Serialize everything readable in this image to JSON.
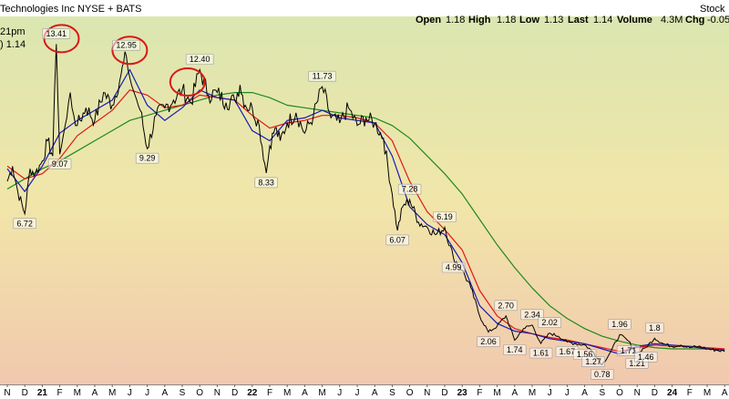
{
  "header": {
    "title": "Technologies Inc  NYSE + BATS",
    "time": "21pm",
    "last_label": ") 1.14",
    "open_label": "Open",
    "open_value": "1.18",
    "high_label": "High",
    "high_value": "1.18",
    "low_label": "Low",
    "low_value": "1.13",
    "last2_label": "Last",
    "last2_value": "1.14",
    "volume_label": "Volume",
    "volume_value": "4.3M",
    "chg_label": "Chg",
    "chg_value": "-0.05",
    "watermark": "Stock"
  },
  "colors": {
    "price": "#000000",
    "ma_short": "#1a1ab8",
    "ma_mid": "#e01818",
    "ma_long": "#1d8a1d",
    "circle": "#d81818",
    "bg_top": "#dbe6b0",
    "bg_mid": "#f1e6a9",
    "bg_bottom": "#f1c8ae"
  },
  "chart_data": {
    "type": "line",
    "ylim": [
      0,
      14.5
    ],
    "x_ticks": [
      "N",
      "D",
      "21",
      "F",
      "M",
      "A",
      "M",
      "J",
      "J",
      "A",
      "S",
      "O",
      "N",
      "D",
      "22",
      "F",
      "M",
      "A",
      "M",
      "J",
      "J",
      "A",
      "S",
      "O",
      "N",
      "D",
      "23",
      "F",
      "M",
      "A",
      "M",
      "J",
      "J",
      "A",
      "S",
      "O",
      "N",
      "D",
      "24",
      "F",
      "M",
      "A"
    ],
    "year_ticks": [
      "21",
      "22",
      "23",
      "24"
    ],
    "series": [
      {
        "key": "price",
        "x": [
          0,
          0.3,
          0.6,
          1,
          1.3,
          1.6,
          2,
          2.3,
          2.6,
          2.8,
          3,
          3.2,
          3.4,
          3.6,
          3.8,
          4,
          4.5,
          5,
          5.5,
          6,
          6.5,
          6.8,
          7,
          7.2,
          7.4,
          7.6,
          8,
          8.5,
          9,
          9.5,
          10,
          10.5,
          11,
          11.5,
          12,
          12.5,
          13,
          13.3,
          13.6,
          14,
          14.4,
          14.8,
          15,
          15.3,
          15.6,
          16,
          16.5,
          17,
          17.5,
          18,
          18.5,
          19,
          19.5,
          20,
          20.5,
          21,
          21.5,
          22,
          22.3,
          22.6,
          23,
          23.5,
          24,
          24.5,
          25,
          25.5,
          26,
          26.5,
          27,
          27.5,
          28,
          28.5,
          29,
          29.5,
          30,
          30.5,
          31,
          31.5,
          32,
          32.5,
          33,
          33.5,
          34,
          34.5,
          35,
          35.5,
          36,
          36.5,
          37,
          37.5,
          38,
          38.5,
          39,
          39.5,
          40,
          40.5,
          41
        ],
        "y": [
          8.0,
          8.6,
          7.6,
          6.72,
          8.5,
          8.3,
          8.8,
          9.6,
          9.0,
          13.41,
          9.07,
          9.8,
          10.5,
          11.5,
          10.6,
          10.2,
          10.9,
          10.4,
          11.5,
          11.0,
          12.2,
          12.95,
          12.1,
          11.6,
          11.2,
          10.8,
          9.29,
          10.6,
          10.9,
          11.2,
          11.6,
          11.1,
          12.4,
          11.4,
          11.5,
          11.1,
          11.2,
          11.8,
          11.0,
          10.9,
          10.2,
          8.33,
          9.4,
          10.1,
          9.6,
          10.3,
          10.7,
          9.9,
          10.6,
          11.73,
          10.5,
          10.3,
          10.9,
          10.2,
          10.5,
          10.3,
          9.7,
          7.5,
          6.07,
          7.0,
          7.28,
          6.4,
          6.2,
          5.9,
          6.19,
          4.99,
          4.5,
          3.8,
          2.7,
          2.06,
          2.3,
          2.7,
          1.74,
          2.2,
          2.34,
          1.61,
          2.02,
          1.9,
          1.67,
          1.6,
          1.56,
          1.27,
          0.78,
          1.3,
          1.96,
          1.71,
          1.21,
          1.46,
          1.82,
          1.6,
          1.5,
          1.55,
          1.45,
          1.5,
          1.4,
          1.35,
          1.3
        ],
        "labels": [
          {
            "i": 3,
            "text": "6.72"
          },
          {
            "i": 9,
            "text": "13.41"
          },
          {
            "i": 10,
            "text": "9.07"
          },
          {
            "i": 21,
            "text": "12.95"
          },
          {
            "i": 26,
            "text": "9.29"
          },
          {
            "i": 32,
            "text": "12.40"
          },
          {
            "i": 41,
            "text": "8.33"
          },
          {
            "i": 49,
            "text": "11.73"
          },
          {
            "i": 58,
            "text": "6.07"
          },
          {
            "i": 60,
            "text": "7.28"
          },
          {
            "i": 64,
            "text": "6.19"
          },
          {
            "i": 65,
            "text": "4.99"
          },
          {
            "i": 69,
            "text": "2.06"
          },
          {
            "i": 71,
            "text": "2.70"
          },
          {
            "i": 72,
            "text": "1.74"
          },
          {
            "i": 74,
            "text": "2.34"
          },
          {
            "i": 75,
            "text": "1.61"
          },
          {
            "i": 76,
            "text": "2.02"
          },
          {
            "i": 78,
            "text": "1.67"
          },
          {
            "i": 80,
            "text": "1.56"
          },
          {
            "i": 81,
            "text": "1.27"
          },
          {
            "i": 82,
            "text": "0.78"
          },
          {
            "i": 84,
            "text": "1.96"
          },
          {
            "i": 85,
            "text": "1.71"
          },
          {
            "i": 86,
            "text": "1.21"
          },
          {
            "i": 87,
            "text": "1.46"
          },
          {
            "i": 88,
            "text": "1.8"
          }
        ]
      },
      {
        "key": "ma_short",
        "x": [
          0,
          1,
          2,
          3,
          4,
          5,
          6,
          7,
          8,
          9,
          10,
          11,
          12,
          13,
          14,
          15,
          16,
          17,
          18,
          19,
          20,
          21,
          22,
          23,
          24,
          25,
          26,
          27,
          28,
          29,
          30,
          31,
          32,
          33,
          34,
          35,
          36,
          37,
          38,
          39,
          40,
          41
        ],
        "y": [
          8.5,
          7.6,
          8.6,
          9.9,
          10.4,
          10.8,
          11.2,
          12.4,
          11.0,
          10.4,
          10.9,
          11.6,
          11.3,
          11.2,
          10.0,
          9.6,
          10.4,
          10.5,
          10.8,
          10.5,
          10.4,
          10.3,
          9.0,
          7.0,
          6.3,
          5.9,
          4.8,
          3.1,
          2.4,
          2.1,
          2.0,
          1.8,
          1.7,
          1.6,
          1.4,
          1.2,
          1.5,
          1.6,
          1.55,
          1.5,
          1.4,
          1.35
        ]
      },
      {
        "key": "ma_mid",
        "x": [
          0,
          1,
          2,
          3,
          4,
          5,
          6,
          7,
          8,
          9,
          10,
          11,
          12,
          13,
          14,
          15,
          16,
          17,
          18,
          19,
          20,
          21,
          22,
          23,
          24,
          25,
          26,
          27,
          28,
          29,
          30,
          31,
          32,
          33,
          34,
          35,
          36,
          37,
          38,
          39,
          40,
          41
        ],
        "y": [
          8.6,
          8.1,
          8.3,
          8.9,
          9.8,
          10.3,
          10.8,
          11.6,
          11.4,
          10.9,
          11.0,
          11.4,
          11.3,
          11.2,
          10.6,
          10.1,
          10.3,
          10.4,
          10.6,
          10.6,
          10.5,
          10.3,
          9.6,
          8.0,
          6.8,
          6.1,
          5.3,
          3.7,
          2.7,
          2.2,
          2.0,
          1.85,
          1.75,
          1.6,
          1.45,
          1.3,
          1.45,
          1.55,
          1.5,
          1.5,
          1.45,
          1.4
        ]
      },
      {
        "key": "ma_long",
        "x": [
          0,
          1,
          2,
          3,
          4,
          5,
          6,
          7,
          8,
          9,
          10,
          11,
          12,
          13,
          14,
          15,
          16,
          17,
          18,
          19,
          20,
          21,
          22,
          23,
          24,
          25,
          26,
          27,
          28,
          29,
          30,
          31,
          32,
          33,
          34,
          35,
          36,
          37,
          38,
          39,
          40,
          41
        ],
        "y": [
          7.7,
          8.1,
          8.5,
          8.8,
          9.2,
          9.6,
          10.0,
          10.4,
          10.6,
          10.8,
          11.0,
          11.2,
          11.4,
          11.5,
          11.5,
          11.3,
          11.0,
          10.9,
          10.8,
          10.7,
          10.6,
          10.5,
          10.2,
          9.7,
          9.0,
          8.3,
          7.5,
          6.5,
          5.5,
          4.6,
          3.8,
          3.1,
          2.6,
          2.2,
          1.9,
          1.7,
          1.55,
          1.45,
          1.4,
          1.4,
          1.4,
          1.4
        ]
      }
    ],
    "circle_markers": [
      {
        "x": 3.1,
        "y": 13.41
      },
      {
        "x": 7.0,
        "y": 12.95
      },
      {
        "x": 10.3,
        "y": 11.7
      }
    ]
  }
}
